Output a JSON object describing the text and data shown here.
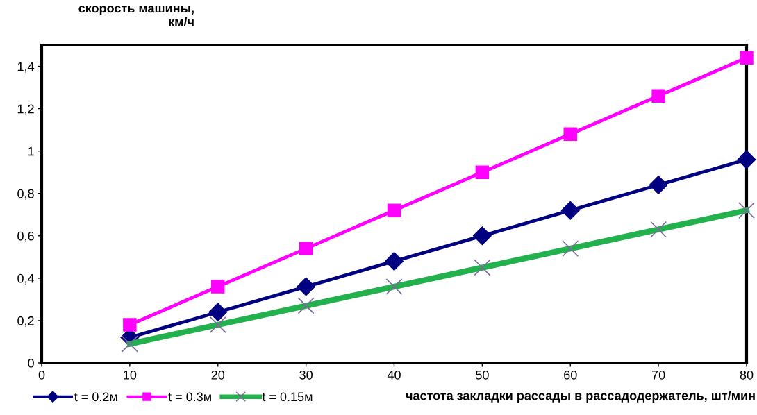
{
  "chart_data": {
    "type": "line",
    "xlabel": "частота закладки рассады в рассадодержатель, шт/мин",
    "ylabel": "скорость машины,\nкм/ч",
    "x": [
      10,
      20,
      30,
      40,
      50,
      60,
      70,
      80
    ],
    "series": [
      {
        "name": "t = 0.2м",
        "color": "#000080",
        "marker": "diamond",
        "values": [
          0.12,
          0.24,
          0.36,
          0.48,
          0.6,
          0.72,
          0.84,
          0.96
        ]
      },
      {
        "name": "t = 0.3м",
        "color": "#ff00ff",
        "marker": "square",
        "values": [
          0.18,
          0.36,
          0.54,
          0.72,
          0.9,
          1.08,
          1.26,
          1.44
        ]
      },
      {
        "name": "t = 0.15м",
        "color": "#22b14c",
        "marker": "cross",
        "values": [
          0.09,
          0.18,
          0.27,
          0.36,
          0.45,
          0.54,
          0.63,
          0.72
        ]
      }
    ],
    "xlim": [
      0,
      80
    ],
    "xticks": [
      0,
      10,
      20,
      30,
      40,
      50,
      60,
      70,
      80
    ],
    "ylim": [
      0,
      1.5
    ],
    "yticks": [
      0,
      {
        "value": 0.2,
        "label": "0,2"
      },
      {
        "value": 0.4,
        "label": "0,4"
      },
      {
        "value": 0.6,
        "label": "0,6"
      },
      {
        "value": 0.8,
        "label": "0,8"
      },
      1,
      {
        "value": 1.2,
        "label": "1,2"
      },
      {
        "value": 1.4,
        "label": "1,4"
      }
    ],
    "grid": false,
    "legend": "bottom left",
    "line_style": "solid"
  }
}
